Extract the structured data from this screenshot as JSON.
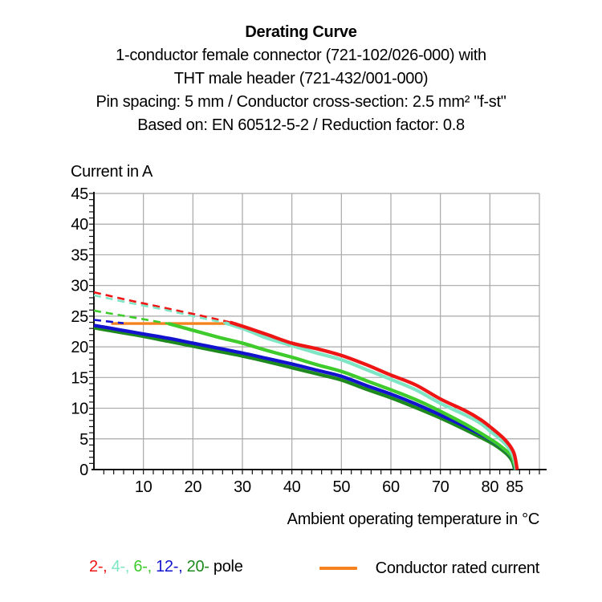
{
  "header": {
    "title": "Derating Curve",
    "subtitle_lines": [
      "1-conductor female connector (721-102/026-000) with",
      "THT male header (721-432/001-000)",
      "Pin spacing: 5 mm / Conductor cross-section: 2.5 mm² \"f-st\"",
      "Based on: EN 60512-5-2 / Reduction factor: 0.8"
    ]
  },
  "chart_data": {
    "type": "line",
    "title": "Derating Curve",
    "xlabel": "Ambient operating temperature in °C",
    "ylabel": "Current in A",
    "xlim": [
      0,
      90
    ],
    "ylim": [
      0,
      45
    ],
    "x_major_ticks": [
      10,
      20,
      30,
      40,
      50,
      60,
      70,
      80,
      85
    ],
    "y_major_ticks": [
      0,
      5,
      10,
      15,
      20,
      25,
      30,
      35,
      40,
      45
    ],
    "x_minor_step": 2,
    "y_minor_step": 1,
    "grid": {
      "on": true,
      "color": "#a8a8a8",
      "x_step": 10,
      "y_step": 5
    },
    "axis_color": "#111111",
    "series": [
      {
        "name": "2-pole",
        "label": "2-",
        "color": "#ee1515",
        "dashed": [
          [
            0,
            28.9
          ],
          [
            7,
            27.6
          ],
          [
            14,
            26.4
          ],
          [
            21,
            25.2
          ],
          [
            27.5,
            24.0
          ]
        ],
        "solid": [
          [
            27.5,
            24.0
          ],
          [
            31,
            23.1
          ],
          [
            35,
            22.0
          ],
          [
            40,
            20.6
          ],
          [
            45,
            19.7
          ],
          [
            50,
            18.6
          ],
          [
            55,
            17.1
          ],
          [
            60,
            15.4
          ],
          [
            65,
            13.8
          ],
          [
            70,
            11.5
          ],
          [
            75,
            9.6
          ],
          [
            78,
            8.2
          ],
          [
            80,
            7.0
          ],
          [
            83,
            4.9
          ],
          [
            84.8,
            2.8
          ],
          [
            85.5,
            0
          ]
        ]
      },
      {
        "name": "4-pole",
        "label": "4-",
        "color": "#7fe6c5",
        "dashed": [
          [
            0,
            28.4
          ],
          [
            7,
            27.2
          ],
          [
            14,
            26.1
          ],
          [
            20,
            25.0
          ],
          [
            26.5,
            23.9
          ]
        ],
        "solid": [
          [
            26.5,
            23.9
          ],
          [
            31,
            22.7
          ],
          [
            35,
            21.4
          ],
          [
            40,
            20.2
          ],
          [
            45,
            19.0
          ],
          [
            50,
            17.9
          ],
          [
            55,
            16.3
          ],
          [
            60,
            14.7
          ],
          [
            65,
            13.0
          ],
          [
            70,
            10.8
          ],
          [
            75,
            8.9
          ],
          [
            78,
            7.6
          ],
          [
            80,
            6.3
          ],
          [
            83,
            4.3
          ],
          [
            84.6,
            2.4
          ],
          [
            85.35,
            0
          ]
        ]
      },
      {
        "name": "6-pole",
        "label": "6-",
        "color": "#3ecb2b",
        "dashed": [
          [
            0,
            25.9
          ],
          [
            5,
            25.2
          ],
          [
            10,
            24.5
          ],
          [
            15,
            23.8
          ]
        ],
        "solid": [
          [
            15,
            23.8
          ],
          [
            20,
            22.7
          ],
          [
            25,
            21.6
          ],
          [
            30,
            20.6
          ],
          [
            35,
            19.4
          ],
          [
            40,
            18.3
          ],
          [
            45,
            17.1
          ],
          [
            50,
            16.0
          ],
          [
            55,
            14.5
          ],
          [
            60,
            13.0
          ],
          [
            65,
            11.4
          ],
          [
            70,
            9.5
          ],
          [
            75,
            7.4
          ],
          [
            79,
            5.5
          ],
          [
            82,
            3.9
          ],
          [
            84.3,
            2.2
          ],
          [
            85.25,
            0
          ]
        ]
      },
      {
        "name": "12-pole",
        "label": "12-",
        "color": "#1313cf",
        "dashed": [
          [
            0,
            24.4
          ],
          [
            6,
            23.85
          ]
        ],
        "solid": [
          [
            0,
            23.5
          ],
          [
            5,
            22.8
          ],
          [
            10,
            22.1
          ],
          [
            15,
            21.4
          ],
          [
            20,
            20.6
          ],
          [
            25,
            19.8
          ],
          [
            30,
            19.0
          ],
          [
            35,
            18.1
          ],
          [
            40,
            17.2
          ],
          [
            45,
            16.2
          ],
          [
            50,
            15.2
          ],
          [
            55,
            13.7
          ],
          [
            60,
            12.3
          ],
          [
            65,
            10.7
          ],
          [
            70,
            8.9
          ],
          [
            74,
            7.4
          ],
          [
            78,
            5.8
          ],
          [
            81,
            4.4
          ],
          [
            83.3,
            3.0
          ],
          [
            84.6,
            1.7
          ],
          [
            85.15,
            0
          ]
        ]
      },
      {
        "name": "20-pole",
        "label": "20-",
        "color": "#1e8a1e",
        "dashed": null,
        "solid": [
          [
            0,
            23.1
          ],
          [
            5,
            22.4
          ],
          [
            10,
            21.7
          ],
          [
            15,
            20.9
          ],
          [
            20,
            20.1
          ],
          [
            25,
            19.3
          ],
          [
            30,
            18.5
          ],
          [
            35,
            17.6
          ],
          [
            40,
            16.6
          ],
          [
            45,
            15.6
          ],
          [
            50,
            14.6
          ],
          [
            55,
            13.1
          ],
          [
            60,
            11.7
          ],
          [
            65,
            10.1
          ],
          [
            70,
            8.4
          ],
          [
            74,
            6.9
          ],
          [
            78,
            5.3
          ],
          [
            81,
            4.0
          ],
          [
            83.3,
            2.6
          ],
          [
            84.5,
            1.4
          ],
          [
            85.0,
            0
          ]
        ]
      }
    ],
    "rated_current_line": {
      "label": "Conductor rated current",
      "color": "#f6821f",
      "y": 23.8,
      "x_range": [
        3.5,
        28.8
      ]
    },
    "legend_position": "bottom"
  },
  "legend": {
    "pole_entries": [
      {
        "label": "2-",
        "color": "#ee1515"
      },
      {
        "label": "4-",
        "color": "#7fe6c5"
      },
      {
        "label": "6-",
        "color": "#3ecb2b"
      },
      {
        "label": "12-",
        "color": "#1313cf"
      },
      {
        "label": "20-",
        "color": "#1e8a1e"
      }
    ],
    "separator": ", ",
    "suffix": " pole",
    "rated": {
      "label": "Conductor rated current",
      "color": "#f6821f"
    }
  }
}
